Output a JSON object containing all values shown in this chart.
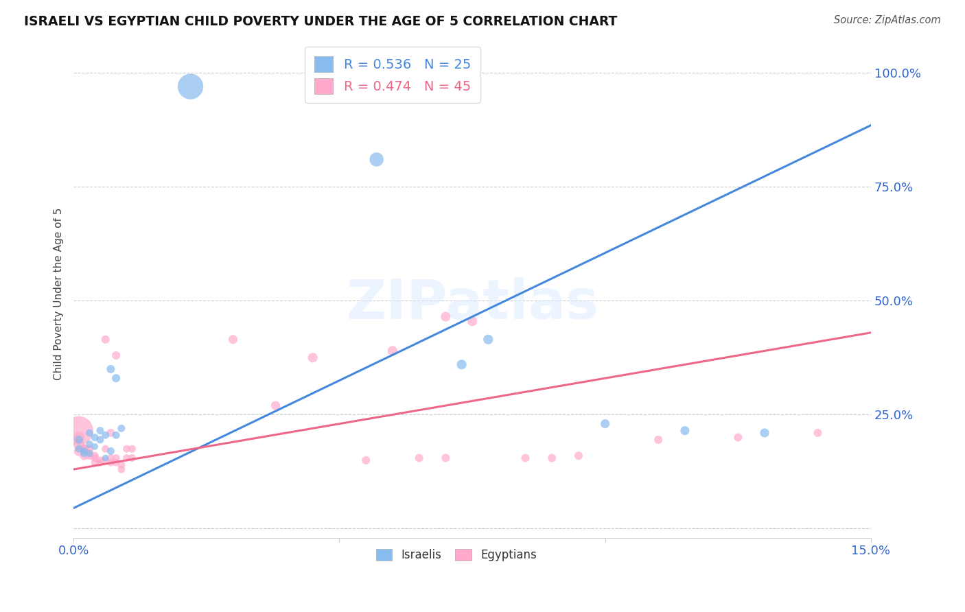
{
  "title": "ISRAELI VS EGYPTIAN CHILD POVERTY UNDER THE AGE OF 5 CORRELATION CHART",
  "source": "Source: ZipAtlas.com",
  "ylabel": "Child Poverty Under the Age of 5",
  "xlim": [
    0.0,
    0.15
  ],
  "ylim": [
    -0.02,
    1.05
  ],
  "xticks": [
    0.0,
    0.05,
    0.1,
    0.15
  ],
  "yticks": [
    0.0,
    0.25,
    0.5,
    0.75,
    1.0
  ],
  "xtick_labels": [
    "0.0%",
    "",
    "",
    "15.0%"
  ],
  "ytick_labels": [
    "",
    "25.0%",
    "50.0%",
    "75.0%",
    "100.0%"
  ],
  "watermark": "ZIPatlas",
  "legend_israel_R": "R = 0.536",
  "legend_israel_N": "N = 25",
  "legend_egypt_R": "R = 0.474",
  "legend_egypt_N": "N = 45",
  "israel_color": "#88BBEE",
  "egypt_color": "#FFAACC",
  "israel_line_color": "#4488DD",
  "egypt_line_color": "#EE6688",
  "israel_scatter": [
    [
      0.001,
      0.195
    ],
    [
      0.001,
      0.175
    ],
    [
      0.002,
      0.17
    ],
    [
      0.002,
      0.165
    ],
    [
      0.003,
      0.21
    ],
    [
      0.003,
      0.185
    ],
    [
      0.003,
      0.165
    ],
    [
      0.004,
      0.2
    ],
    [
      0.004,
      0.18
    ],
    [
      0.005,
      0.195
    ],
    [
      0.005,
      0.215
    ],
    [
      0.006,
      0.205
    ],
    [
      0.006,
      0.155
    ],
    [
      0.007,
      0.17
    ],
    [
      0.007,
      0.35
    ],
    [
      0.008,
      0.205
    ],
    [
      0.008,
      0.33
    ],
    [
      0.009,
      0.22
    ],
    [
      0.022,
      0.97
    ],
    [
      0.057,
      0.81
    ],
    [
      0.073,
      0.36
    ],
    [
      0.078,
      0.415
    ],
    [
      0.1,
      0.23
    ],
    [
      0.115,
      0.215
    ],
    [
      0.13,
      0.21
    ]
  ],
  "israel_sizes": [
    10,
    9,
    9,
    9,
    9,
    9,
    8,
    9,
    8,
    9,
    9,
    9,
    8,
    9,
    10,
    9,
    10,
    9,
    35,
    18,
    12,
    12,
    11,
    11,
    11
  ],
  "egypt_scatter": [
    [
      0.001,
      0.215
    ],
    [
      0.001,
      0.2
    ],
    [
      0.001,
      0.185
    ],
    [
      0.001,
      0.17
    ],
    [
      0.002,
      0.175
    ],
    [
      0.002,
      0.16
    ],
    [
      0.002,
      0.175
    ],
    [
      0.003,
      0.16
    ],
    [
      0.003,
      0.165
    ],
    [
      0.003,
      0.175
    ],
    [
      0.004,
      0.145
    ],
    [
      0.004,
      0.155
    ],
    [
      0.004,
      0.16
    ],
    [
      0.005,
      0.15
    ],
    [
      0.005,
      0.145
    ],
    [
      0.006,
      0.15
    ],
    [
      0.006,
      0.175
    ],
    [
      0.006,
      0.415
    ],
    [
      0.007,
      0.145
    ],
    [
      0.007,
      0.155
    ],
    [
      0.007,
      0.21
    ],
    [
      0.008,
      0.145
    ],
    [
      0.008,
      0.155
    ],
    [
      0.008,
      0.38
    ],
    [
      0.009,
      0.14
    ],
    [
      0.009,
      0.13
    ],
    [
      0.01,
      0.155
    ],
    [
      0.01,
      0.175
    ],
    [
      0.011,
      0.175
    ],
    [
      0.011,
      0.155
    ],
    [
      0.03,
      0.415
    ],
    [
      0.038,
      0.27
    ],
    [
      0.045,
      0.375
    ],
    [
      0.055,
      0.15
    ],
    [
      0.06,
      0.39
    ],
    [
      0.065,
      0.155
    ],
    [
      0.07,
      0.155
    ],
    [
      0.07,
      0.465
    ],
    [
      0.075,
      0.455
    ],
    [
      0.085,
      0.155
    ],
    [
      0.09,
      0.155
    ],
    [
      0.095,
      0.16
    ],
    [
      0.11,
      0.195
    ],
    [
      0.125,
      0.2
    ],
    [
      0.14,
      0.21
    ]
  ],
  "egypt_sizes": [
    40,
    14,
    14,
    12,
    11,
    11,
    11,
    10,
    10,
    10,
    9,
    9,
    9,
    9,
    9,
    9,
    9,
    10,
    9,
    9,
    10,
    9,
    9,
    10,
    9,
    9,
    9,
    9,
    9,
    9,
    11,
    11,
    12,
    10,
    12,
    10,
    10,
    12,
    12,
    10,
    10,
    10,
    10,
    10,
    10
  ],
  "background_color": "#ffffff",
  "grid_color": "#cccccc",
  "israel_line_x": [
    0.0,
    0.15
  ],
  "israel_line_y": [
    0.045,
    0.885
  ],
  "egypt_line_x": [
    0.0,
    0.15
  ],
  "egypt_line_y": [
    0.13,
    0.43
  ]
}
